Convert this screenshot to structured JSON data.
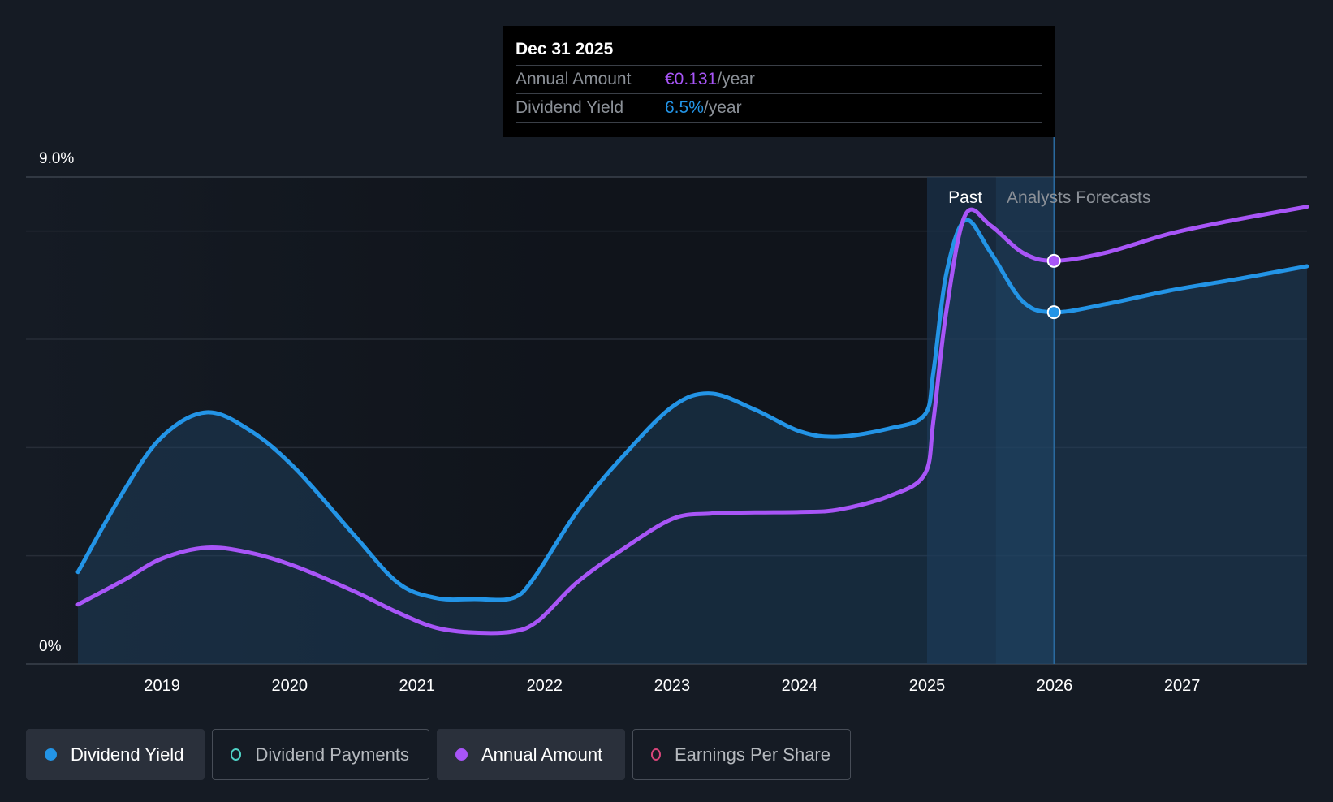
{
  "tooltip": {
    "date": "Dec 31 2025",
    "rows": [
      {
        "label": "Annual Amount",
        "value": "€0.131",
        "unit": "/year"
      },
      {
        "label": "Dividend Yield",
        "value": "6.5%",
        "unit": "/year"
      }
    ]
  },
  "legend": [
    {
      "label": "Dividend Yield",
      "color": "#2394e6",
      "active": true,
      "filled": true
    },
    {
      "label": "Dividend Payments",
      "color": "#4fd1c5",
      "active": false,
      "filled": false
    },
    {
      "label": "Annual Amount",
      "color": "#a855f7",
      "active": true,
      "filled": true
    },
    {
      "label": "Earnings Per Share",
      "color": "#d9457a",
      "active": false,
      "filled": false
    }
  ],
  "chart_data": {
    "type": "line",
    "y_tick_labels": [
      "9.0%",
      "0%"
    ],
    "ylim": [
      0,
      9.0
    ],
    "xlim": [
      2018.34,
      2027.98
    ],
    "x_tick_labels": [
      "2019",
      "2020",
      "2021",
      "2022",
      "2023",
      "2024",
      "2025",
      "2026",
      "2027"
    ],
    "grid": true,
    "regions": {
      "past_label": "Past",
      "forecast_label": "Analysts Forecasts",
      "past_end": 2025.0,
      "cursor_date": 2025.995
    },
    "series": [
      {
        "name": "Dividend Yield",
        "color": "#2394e6",
        "fill": true,
        "points": [
          [
            2018.34,
            1.7
          ],
          [
            2018.7,
            3.2
          ],
          [
            2019.0,
            4.2
          ],
          [
            2019.35,
            4.65
          ],
          [
            2019.7,
            4.3
          ],
          [
            2020.05,
            3.6
          ],
          [
            2020.5,
            2.4
          ],
          [
            2020.85,
            1.5
          ],
          [
            2021.15,
            1.22
          ],
          [
            2021.45,
            1.2
          ],
          [
            2021.75,
            1.22
          ],
          [
            2021.92,
            1.6
          ],
          [
            2022.25,
            2.8
          ],
          [
            2022.6,
            3.8
          ],
          [
            2023.0,
            4.75
          ],
          [
            2023.3,
            5.0
          ],
          [
            2023.65,
            4.7
          ],
          [
            2024.0,
            4.3
          ],
          [
            2024.3,
            4.2
          ],
          [
            2024.7,
            4.35
          ],
          [
            2024.98,
            4.6
          ],
          [
            2025.05,
            5.4
          ],
          [
            2025.15,
            7.2
          ],
          [
            2025.3,
            8.2
          ],
          [
            2025.5,
            7.6
          ],
          [
            2025.75,
            6.7
          ],
          [
            2025.995,
            6.5
          ],
          [
            2026.4,
            6.65
          ],
          [
            2026.9,
            6.9
          ],
          [
            2027.4,
            7.1
          ],
          [
            2027.98,
            7.35
          ]
        ]
      },
      {
        "name": "Annual Amount",
        "color": "#a855f7",
        "fill": false,
        "points": [
          [
            2018.34,
            1.1
          ],
          [
            2018.7,
            1.55
          ],
          [
            2019.0,
            1.95
          ],
          [
            2019.35,
            2.15
          ],
          [
            2019.7,
            2.05
          ],
          [
            2020.05,
            1.8
          ],
          [
            2020.5,
            1.35
          ],
          [
            2020.85,
            0.95
          ],
          [
            2021.15,
            0.67
          ],
          [
            2021.45,
            0.58
          ],
          [
            2021.75,
            0.6
          ],
          [
            2021.95,
            0.8
          ],
          [
            2022.25,
            1.5
          ],
          [
            2022.6,
            2.1
          ],
          [
            2023.0,
            2.68
          ],
          [
            2023.3,
            2.78
          ],
          [
            2023.65,
            2.8
          ],
          [
            2024.0,
            2.81
          ],
          [
            2024.3,
            2.85
          ],
          [
            2024.7,
            3.1
          ],
          [
            2024.98,
            3.5
          ],
          [
            2025.05,
            4.5
          ],
          [
            2025.15,
            6.5
          ],
          [
            2025.3,
            8.3
          ],
          [
            2025.5,
            8.1
          ],
          [
            2025.75,
            7.6
          ],
          [
            2025.995,
            7.45
          ],
          [
            2026.4,
            7.6
          ],
          [
            2026.9,
            7.95
          ],
          [
            2027.4,
            8.2
          ],
          [
            2027.98,
            8.45
          ]
        ]
      }
    ]
  }
}
